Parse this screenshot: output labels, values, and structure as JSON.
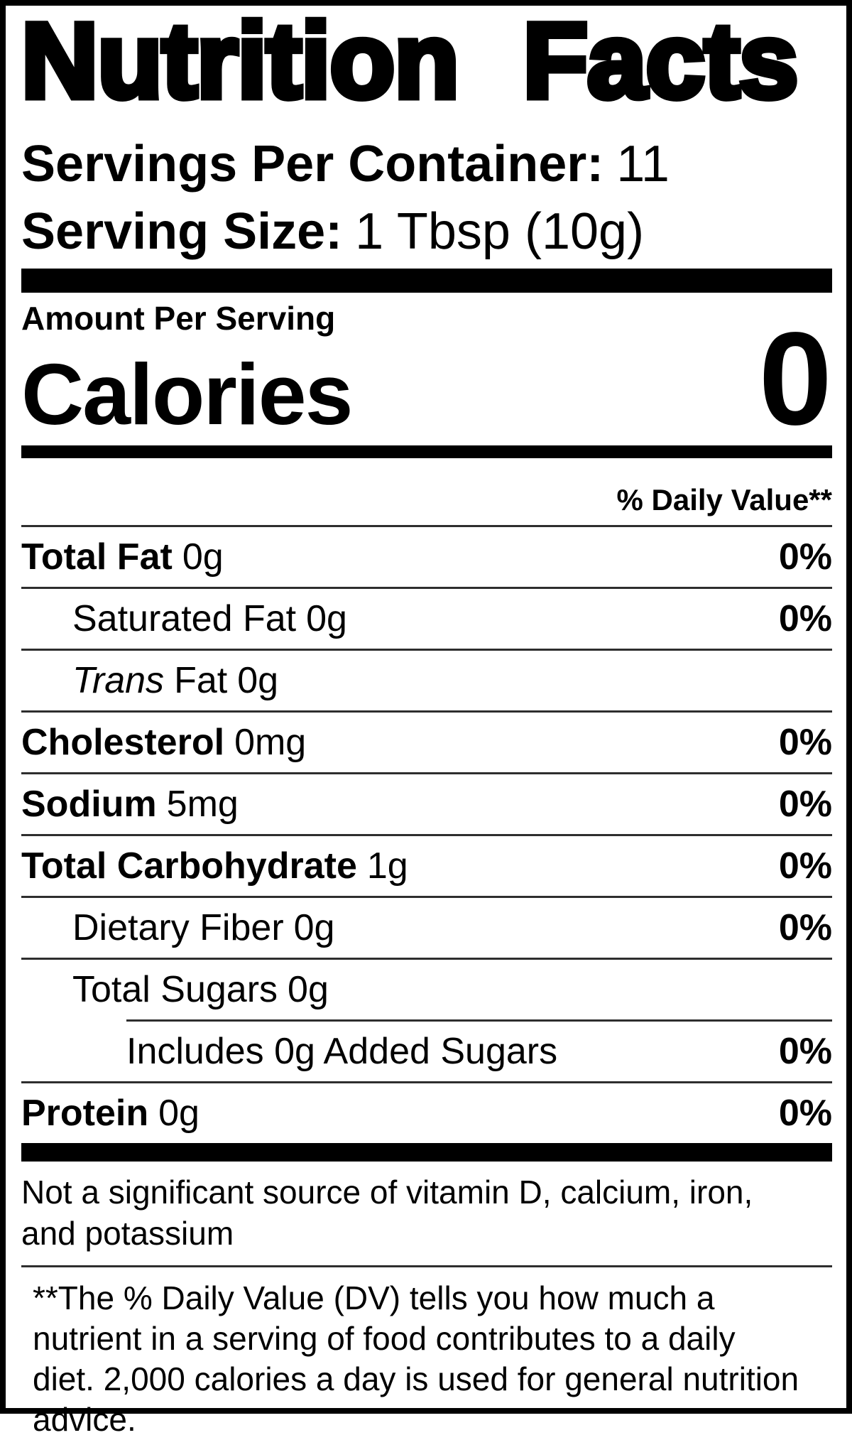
{
  "label": {
    "title": "Nutrition Facts",
    "servings_per_container": {
      "label": "Servings Per Container:",
      "value": "11"
    },
    "serving_size": {
      "label": "Serving Size:",
      "value": "1 Tbsp (10g)"
    },
    "amount_per_serving": "Amount Per Serving",
    "calories": {
      "label": "Calories",
      "value": "0"
    },
    "daily_value_header": "% Daily Value**",
    "rows": [
      {
        "name": "Total Fat",
        "amount": "0g",
        "dv": "0%"
      },
      {
        "name": "Saturated Fat",
        "amount": "0g",
        "dv": "0%"
      },
      {
        "name_italic": "Trans",
        "name": "Fat",
        "amount": "0g",
        "dv": ""
      },
      {
        "name": "Cholesterol",
        "amount": "0mg",
        "dv": "0%"
      },
      {
        "name": "Sodium",
        "amount": "5mg",
        "dv": "0%"
      },
      {
        "name": "Total Carbohydrate",
        "amount": "1g",
        "dv": "0%"
      },
      {
        "name": "Dietary Fiber",
        "amount": "0g",
        "dv": "0%"
      },
      {
        "name": "Total Sugars",
        "amount": "0g",
        "dv": ""
      },
      {
        "name": "Includes 0g Added Sugars",
        "amount": "",
        "dv": "0%"
      },
      {
        "name": "Protein",
        "amount": "0g",
        "dv": "0%"
      }
    ],
    "not_significant": "Not a significant source of vitamin D, calcium, iron, and potassium",
    "footnote": "**The % Daily Value (DV) tells you how much a nutrient in a serving of food contributes to a daily diet. 2,000 calories a day is used for general nutrition advice."
  }
}
